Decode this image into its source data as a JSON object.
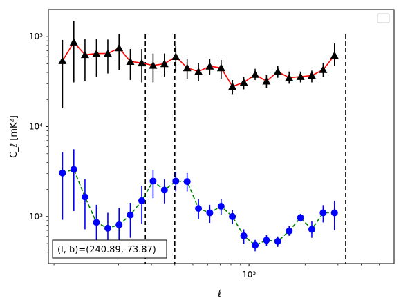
{
  "chart_data": {
    "type": "scatter",
    "xlabel": "ℓ",
    "ylabel": "C_ℓ [mK²]",
    "xscale": "log",
    "yscale": "log",
    "xlim": [
      84,
      6000
    ],
    "ylim": [
      300,
      200000
    ],
    "x_tick_label": "10³",
    "x_tick_value": 1000,
    "y_tick_labels": [
      {
        "value": 1000,
        "label": "10³"
      },
      {
        "value": 10000,
        "label": "10⁴"
      },
      {
        "value": 100000,
        "label": "10⁵"
      }
    ],
    "annotation": "(l, b)=(240.89,-73.87)",
    "vlines": [
      278,
      400,
      3300
    ],
    "series": [
      {
        "color": "#000000",
        "line_color": "#ff0000",
        "line_style": "solid",
        "marker": "triangle",
        "points": [
          {
            "x": 100,
            "y": 54000,
            "lo": 16000,
            "hi": 92000
          },
          {
            "x": 115,
            "y": 87000,
            "lo": 31000,
            "hi": 150000
          },
          {
            "x": 132,
            "y": 63000,
            "lo": 32000,
            "hi": 94000
          },
          {
            "x": 152,
            "y": 65000,
            "lo": 36000,
            "hi": 94000
          },
          {
            "x": 175,
            "y": 65000,
            "lo": 39000,
            "hi": 93000
          },
          {
            "x": 201,
            "y": 75000,
            "lo": 43000,
            "hi": 107000
          },
          {
            "x": 231,
            "y": 53000,
            "lo": 33000,
            "hi": 73000
          },
          {
            "x": 266,
            "y": 51000,
            "lo": 31000,
            "hi": 73000
          },
          {
            "x": 306,
            "y": 48000,
            "lo": 31000,
            "hi": 65000
          },
          {
            "x": 352,
            "y": 50000,
            "lo": 36000,
            "hi": 65000
          },
          {
            "x": 405,
            "y": 60000,
            "lo": 41000,
            "hi": 79000
          },
          {
            "x": 466,
            "y": 45000,
            "lo": 34000,
            "hi": 57000
          },
          {
            "x": 536,
            "y": 41000,
            "lo": 32000,
            "hi": 51000
          },
          {
            "x": 616,
            "y": 47000,
            "lo": 38000,
            "hi": 57000
          },
          {
            "x": 709,
            "y": 45000,
            "lo": 34000,
            "hi": 55000
          },
          {
            "x": 815,
            "y": 28000,
            "lo": 23000,
            "hi": 33000
          },
          {
            "x": 938,
            "y": 31000,
            "lo": 26000,
            "hi": 36000
          },
          {
            "x": 1079,
            "y": 38000,
            "lo": 33000,
            "hi": 44000
          },
          {
            "x": 1241,
            "y": 32000,
            "lo": 27000,
            "hi": 38000
          },
          {
            "x": 1427,
            "y": 41000,
            "lo": 35000,
            "hi": 47000
          },
          {
            "x": 1642,
            "y": 35000,
            "lo": 30000,
            "hi": 41000
          },
          {
            "x": 1889,
            "y": 36000,
            "lo": 31000,
            "hi": 41000
          },
          {
            "x": 2172,
            "y": 37000,
            "lo": 31000,
            "hi": 42000
          },
          {
            "x": 2499,
            "y": 43000,
            "lo": 36000,
            "hi": 51000
          },
          {
            "x": 2874,
            "y": 62000,
            "lo": 47000,
            "hi": 84000
          }
        ]
      },
      {
        "color": "#0000ff",
        "line_color": "#008000",
        "line_style": "dashed",
        "marker": "circle",
        "points": [
          {
            "x": 100,
            "y": 3050,
            "lo": 920,
            "hi": 5200
          },
          {
            "x": 115,
            "y": 3350,
            "lo": 1150,
            "hi": 5600
          },
          {
            "x": 132,
            "y": 1650,
            "lo": 720,
            "hi": 2600
          },
          {
            "x": 152,
            "y": 860,
            "lo": 370,
            "hi": 1350
          },
          {
            "x": 175,
            "y": 740,
            "lo": 390,
            "hi": 1100
          },
          {
            "x": 201,
            "y": 810,
            "lo": 380,
            "hi": 1250
          },
          {
            "x": 231,
            "y": 1040,
            "lo": 580,
            "hi": 1420
          },
          {
            "x": 266,
            "y": 1500,
            "lo": 830,
            "hi": 2200
          },
          {
            "x": 306,
            "y": 2480,
            "lo": 1600,
            "hi": 3300
          },
          {
            "x": 352,
            "y": 1970,
            "lo": 1400,
            "hi": 2600
          },
          {
            "x": 405,
            "y": 2480,
            "lo": 1900,
            "hi": 3150
          },
          {
            "x": 466,
            "y": 2450,
            "lo": 1900,
            "hi": 3050
          },
          {
            "x": 536,
            "y": 1230,
            "lo": 930,
            "hi": 1550
          },
          {
            "x": 616,
            "y": 1100,
            "lo": 850,
            "hi": 1350
          },
          {
            "x": 709,
            "y": 1300,
            "lo": 1050,
            "hi": 1580
          },
          {
            "x": 815,
            "y": 1000,
            "lo": 820,
            "hi": 1180
          },
          {
            "x": 938,
            "y": 610,
            "lo": 500,
            "hi": 720
          },
          {
            "x": 1079,
            "y": 480,
            "lo": 410,
            "hi": 550
          },
          {
            "x": 1241,
            "y": 545,
            "lo": 470,
            "hi": 620
          },
          {
            "x": 1427,
            "y": 530,
            "lo": 460,
            "hi": 600
          },
          {
            "x": 1642,
            "y": 690,
            "lo": 610,
            "hi": 780
          },
          {
            "x": 1889,
            "y": 970,
            "lo": 880,
            "hi": 1070
          },
          {
            "x": 2172,
            "y": 720,
            "lo": 580,
            "hi": 880
          },
          {
            "x": 2499,
            "y": 1100,
            "lo": 860,
            "hi": 1340
          },
          {
            "x": 2874,
            "y": 1100,
            "lo": 700,
            "hi": 1500
          }
        ]
      }
    ]
  }
}
